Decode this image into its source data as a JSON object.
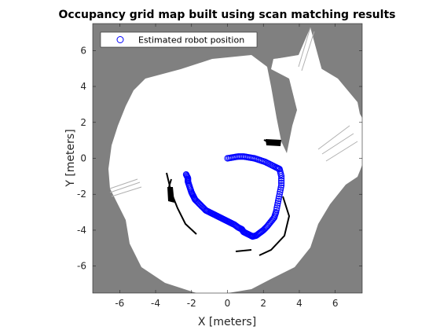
{
  "chart_data": {
    "type": "scatter",
    "title": "Occupancy grid map built using scan matching results",
    "xlabel": "X [meters]",
    "ylabel": "Y [meters]",
    "xlim": [
      -7.5,
      7.5
    ],
    "ylim": [
      -7.5,
      7.5
    ],
    "xticks": [
      -6,
      -4,
      -2,
      0,
      2,
      4,
      6
    ],
    "yticks": [
      6,
      4,
      2,
      0,
      -2,
      -4,
      -6
    ],
    "xtick_labels": [
      "-6",
      "-4",
      "-2",
      "0",
      "2",
      "4",
      "6"
    ],
    "ytick_labels": [
      "6",
      "4",
      "2",
      "0",
      "-2",
      "-4",
      "-6"
    ],
    "legend_position": "top-left",
    "background": "occupancy grid map (grey unknown, white free, black occupied)",
    "series": [
      {
        "name": "Estimated robot position",
        "marker": "open-circle",
        "color": "#0000ff",
        "x": [
          0.0,
          0.3,
          0.6,
          0.9,
          1.2,
          1.5,
          1.8,
          2.1,
          2.4,
          2.7,
          2.9,
          3.0,
          3.0,
          2.9,
          2.8,
          2.7,
          2.6,
          2.4,
          2.2,
          2.0,
          1.8,
          1.6,
          1.4,
          1.3,
          1.1,
          0.9,
          0.8,
          0.6,
          0.4,
          0.2,
          0.0,
          -0.2,
          -0.4,
          -0.6,
          -0.8,
          -1.0,
          -1.2,
          -1.4,
          -1.6,
          -1.8,
          -1.9,
          -2.0,
          -2.1,
          -2.2,
          -2.2,
          -2.3
        ],
        "y": [
          0.0,
          0.05,
          0.1,
          0.1,
          0.05,
          0.0,
          -0.1,
          -0.2,
          -0.35,
          -0.5,
          -0.6,
          -1.0,
          -1.5,
          -2.0,
          -2.5,
          -3.0,
          -3.3,
          -3.55,
          -3.8,
          -4.0,
          -4.15,
          -4.3,
          -4.35,
          -4.3,
          -4.2,
          -4.1,
          -3.95,
          -3.85,
          -3.7,
          -3.6,
          -3.5,
          -3.4,
          -3.3,
          -3.2,
          -3.1,
          -3.0,
          -2.9,
          -2.7,
          -2.5,
          -2.3,
          -2.1,
          -1.9,
          -1.6,
          -1.3,
          -1.1,
          -0.9
        ]
      }
    ]
  }
}
